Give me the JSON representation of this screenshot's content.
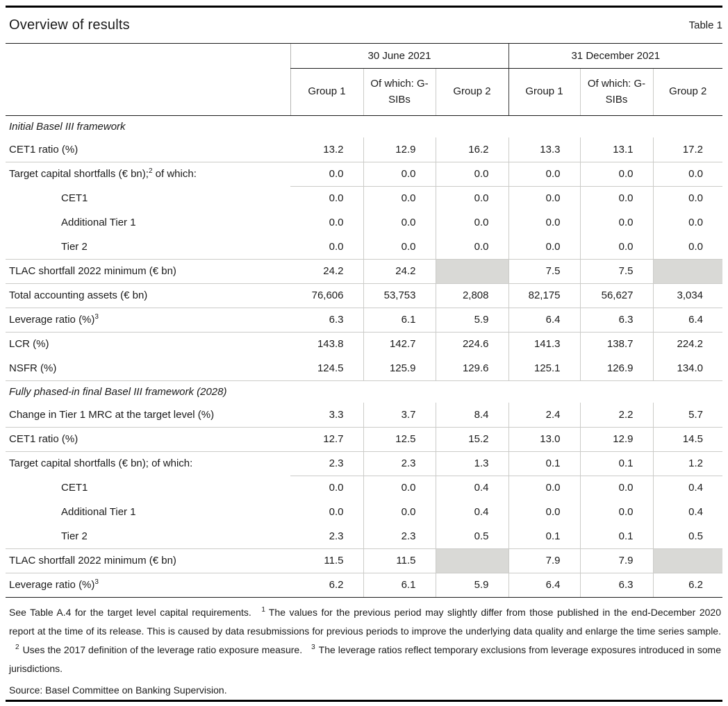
{
  "title": "Overview of results",
  "table_label": "Table 1",
  "header": {
    "period1": "30 June 2021",
    "period2": "31 December 2021",
    "subcolumns": [
      "Group 1",
      "Of which: G-SIBs",
      "Group 2",
      "Group 1",
      "Of which: G-SIBs",
      "Group 2"
    ]
  },
  "sections": [
    {
      "title": "Initial Basel III framework",
      "rows": [
        {
          "label": "CET1 ratio (%)",
          "values": [
            "13.2",
            "12.9",
            "16.2",
            "13.3",
            "13.1",
            "17.2"
          ],
          "rule": "full"
        },
        {
          "label": "Target capital shortfalls (€ bn);",
          "sup": "2",
          "label_after": " of which:",
          "values": [
            "0.0",
            "0.0",
            "0.0",
            "0.0",
            "0.0",
            "0.0"
          ],
          "rule": "partial"
        },
        {
          "label": "CET1",
          "indent": true,
          "values": [
            "0.0",
            "0.0",
            "0.0",
            "0.0",
            "0.0",
            "0.0"
          ],
          "rule": "none"
        },
        {
          "label": "Additional Tier 1",
          "indent": true,
          "values": [
            "0.0",
            "0.0",
            "0.0",
            "0.0",
            "0.0",
            "0.0"
          ],
          "rule": "none"
        },
        {
          "label": "Tier 2",
          "indent": true,
          "values": [
            "0.0",
            "0.0",
            "0.0",
            "0.0",
            "0.0",
            "0.0"
          ],
          "rule": "full"
        },
        {
          "label": "TLAC shortfall 2022 minimum (€ bn)",
          "values": [
            "24.2",
            "24.2",
            null,
            "7.5",
            "7.5",
            null
          ],
          "rule": "full"
        },
        {
          "label": "Total accounting assets (€ bn)",
          "values": [
            "76,606",
            "53,753",
            "2,808",
            "82,175",
            "56,627",
            "3,034"
          ],
          "rule": "full"
        },
        {
          "label": "Leverage ratio (%)",
          "sup": "3",
          "values": [
            "6.3",
            "6.1",
            "5.9",
            "6.4",
            "6.3",
            "6.4"
          ],
          "rule": "full"
        },
        {
          "label": "LCR (%)",
          "values": [
            "143.8",
            "142.7",
            "224.6",
            "141.3",
            "138.7",
            "224.2"
          ],
          "rule": "none"
        },
        {
          "label": "NSFR (%)",
          "values": [
            "124.5",
            "125.9",
            "129.6",
            "125.1",
            "126.9",
            "134.0"
          ],
          "rule": "full"
        }
      ]
    },
    {
      "title": "Fully phased-in final Basel III framework (2028)",
      "rows": [
        {
          "label": "Change in Tier 1 MRC at the target level (%)",
          "values": [
            "3.3",
            "3.7",
            "8.4",
            "2.4",
            "2.2",
            "5.7"
          ],
          "rule": "full"
        },
        {
          "label": "CET1 ratio (%)",
          "values": [
            "12.7",
            "12.5",
            "15.2",
            "13.0",
            "12.9",
            "14.5"
          ],
          "rule": "full"
        },
        {
          "label": "Target capital shortfalls (€ bn); of which:",
          "values": [
            "2.3",
            "2.3",
            "1.3",
            "0.1",
            "0.1",
            "1.2"
          ],
          "rule": "partial"
        },
        {
          "label": "CET1",
          "indent": true,
          "values": [
            "0.0",
            "0.0",
            "0.4",
            "0.0",
            "0.0",
            "0.4"
          ],
          "rule": "none"
        },
        {
          "label": "Additional Tier 1",
          "indent": true,
          "values": [
            "0.0",
            "0.0",
            "0.4",
            "0.0",
            "0.0",
            "0.4"
          ],
          "rule": "none"
        },
        {
          "label": "Tier 2",
          "indent": true,
          "values": [
            "2.3",
            "2.3",
            "0.5",
            "0.1",
            "0.1",
            "0.5"
          ],
          "rule": "full"
        },
        {
          "label": "TLAC shortfall 2022 minimum (€ bn)",
          "values": [
            "11.5",
            "11.5",
            null,
            "7.9",
            "7.9",
            null
          ],
          "rule": "full"
        },
        {
          "label": "Leverage ratio (%)",
          "sup": "3",
          "values": [
            "6.2",
            "6.1",
            "5.9",
            "6.4",
            "6.3",
            "6.2"
          ],
          "rule": "none"
        }
      ]
    }
  ],
  "footnote_segments": [
    {
      "t": "text",
      "v": "See Table A.4 for the target level capital requirements."
    },
    {
      "t": "sup",
      "v": "1"
    },
    {
      "t": "text",
      "v": "The values for the previous period may slightly differ from those published in the end-December 2020 report at the time of its release. This is caused by data resubmissions for previous periods to improve the underlying data quality and enlarge the time series sample."
    },
    {
      "t": "sup",
      "v": "2"
    },
    {
      "t": "text",
      "v": "Uses the 2017 definition of the leverage ratio exposure measure."
    },
    {
      "t": "sup",
      "v": "3"
    },
    {
      "t": "text",
      "v": "The leverage ratios reflect temporary exclusions from leverage exposures introduced in some jurisdictions."
    }
  ],
  "source": "Source: Basel Committee on Banking Supervision.",
  "colors": {
    "shaded_cell": "#d9d9d6",
    "grid_line": "#cbcbc8",
    "header_divider_dark": "#3a3a3a",
    "header_divider_mid": "#b5b5b2",
    "rule_black": "#000000",
    "text": "#1a1a1a"
  }
}
